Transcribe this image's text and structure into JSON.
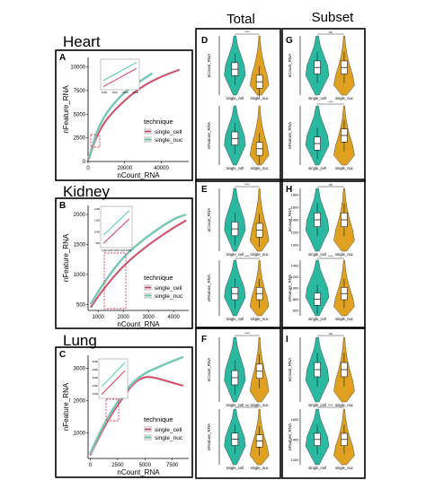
{
  "headers": {
    "total": "Total",
    "subset": "Subset"
  },
  "tissues": {
    "heart": "Heart",
    "kidney": "Kidney",
    "lung": "Lung"
  },
  "panel_letters": {
    "A": "A",
    "B": "B",
    "C": "C",
    "D": "D",
    "E": "E",
    "F": "F",
    "G": "G",
    "H": "H",
    "I": "I"
  },
  "colors": {
    "single_cell": "#d63a5a",
    "single_nuc": "#4ec9b0",
    "violin_cell": "#2ab8a0",
    "violin_nuc": "#e0a020"
  },
  "chart_data": [
    {
      "panel": "A",
      "type": "line",
      "xlabel": "nCount_RNA",
      "ylabel": "nFeature_RNA",
      "xticks": [
        "0",
        "20000",
        "40000"
      ],
      "yticks": [
        "0",
        "2500",
        "5000",
        "7500",
        "10000"
      ],
      "xlim": [
        0,
        55000
      ],
      "ylim": [
        0,
        11000
      ],
      "legend_title": "technique",
      "legend": [
        "single_cell",
        "single_nuc"
      ],
      "inset_xticks": [
        "1000",
        "1500",
        "2000",
        "2500"
      ],
      "series": [
        {
          "name": "single_cell",
          "x": [
            500,
            2000,
            5000,
            10000,
            20000,
            30000,
            40000,
            50000
          ],
          "y": [
            300,
            1200,
            2800,
            4500,
            6500,
            8000,
            9000,
            9700
          ]
        },
        {
          "name": "single_nuc",
          "x": [
            500,
            2000,
            5000,
            10000,
            20000,
            30000,
            35000
          ],
          "y": [
            350,
            1400,
            3300,
            5200,
            7400,
            8700,
            9300
          ]
        }
      ]
    },
    {
      "panel": "B",
      "type": "line",
      "xlabel": "nCount_RNA",
      "ylabel": "nFeature_RNA",
      "xticks": [
        "1000",
        "2000",
        "3000",
        "4000"
      ],
      "yticks": [
        "500",
        "1000",
        "1500",
        "2000"
      ],
      "xlim": [
        600,
        4600
      ],
      "ylim": [
        400,
        2150
      ],
      "legend_title": "technique",
      "legend": [
        "single_cell",
        "single_nuc"
      ],
      "inset_xticks": [
        "1100",
        "1200",
        "1300",
        "1400",
        "1500"
      ],
      "inset_yticks": [
        "1200",
        "1100",
        "1000",
        "900"
      ],
      "series": [
        {
          "name": "single_cell",
          "x": [
            700,
            1200,
            2000,
            3000,
            4000,
            4500
          ],
          "y": [
            450,
            750,
            1150,
            1500,
            1780,
            1900
          ]
        },
        {
          "name": "single_nuc",
          "x": [
            700,
            1200,
            2000,
            3000,
            4000,
            4500
          ],
          "y": [
            500,
            850,
            1300,
            1650,
            1930,
            2000
          ]
        }
      ]
    },
    {
      "panel": "C",
      "type": "line",
      "xlabel": "nCount_RNA",
      "ylabel": "nFeature_RNA",
      "xticks": [
        "0",
        "2500",
        "5000",
        "7500"
      ],
      "yticks": [
        "1000",
        "2000",
        "3000"
      ],
      "xlim": [
        -200,
        9000
      ],
      "ylim": [
        200,
        3400
      ],
      "legend_title": "technique",
      "legend": [
        "single_cell",
        "single_nuc"
      ],
      "inset_yticks": [
        "3000",
        "2500",
        "2000",
        "1500",
        "1000"
      ],
      "series": [
        {
          "name": "single_cell",
          "x": [
            0,
            1000,
            2000,
            3000,
            4000,
            5000,
            6000,
            7000,
            8500
          ],
          "y": [
            300,
            1000,
            1600,
            2100,
            2550,
            2750,
            2700,
            2600,
            2450
          ]
        },
        {
          "name": "single_nuc",
          "x": [
            0,
            1000,
            2000,
            3000,
            4000,
            5000,
            6000,
            7000,
            8500
          ],
          "y": [
            350,
            1100,
            1700,
            2200,
            2600,
            2850,
            3000,
            3150,
            3350
          ]
        }
      ]
    },
    {
      "panel": "D-top",
      "type": "violin",
      "ylabel": "nCount_RNA",
      "categories": [
        "single_cell",
        "single_nuc"
      ],
      "median": [
        3500,
        1800
      ],
      "ylim": [
        0,
        8000
      ],
      "sig": "****"
    },
    {
      "panel": "D-bottom",
      "type": "violin",
      "ylabel": "nFeature_RNA",
      "categories": [
        "single_cell",
        "single_nuc"
      ],
      "median": [
        1800,
        1100
      ],
      "ylim": [
        0,
        4000
      ],
      "sig": ""
    },
    {
      "panel": "E-top",
      "type": "violin",
      "ylabel": "nCount_RNA",
      "categories": [
        "single_cell",
        "single_nuc"
      ],
      "median": [
        1600,
        1500
      ],
      "ylim": [
        0,
        4500
      ],
      "sig": "****"
    },
    {
      "panel": "E-bottom",
      "type": "violin",
      "ylabel": "nFeature_RNA",
      "categories": [
        "single_cell",
        "single_nuc"
      ],
      "median": [
        1000,
        1000
      ],
      "ylim": [
        0,
        2500
      ],
      "sig": "****"
    },
    {
      "panel": "F-top",
      "type": "violin",
      "ylabel": "nCount_RNA",
      "categories": [
        "single_cell",
        "single_nuc"
      ],
      "median": [
        3000,
        3800
      ],
      "ylim": [
        0,
        8000
      ],
      "sig": "****"
    },
    {
      "panel": "F-bottom",
      "type": "violin",
      "ylabel": "nFeature_RNA",
      "categories": [
        "single_cell",
        "single_nuc"
      ],
      "median": [
        1600,
        1500
      ],
      "ylim": [
        0,
        3500
      ],
      "sig": "ns"
    },
    {
      "panel": "G-top",
      "type": "violin",
      "ylabel": "nCount_RNA",
      "categories": [
        "single_cell",
        "single_nuc"
      ],
      "median": [
        1700,
        1700
      ],
      "ylim": [
        1000,
        2500
      ],
      "sig": "ns"
    },
    {
      "panel": "G-bottom",
      "type": "violin",
      "ylabel": "nFeature_RNA",
      "categories": [
        "single_cell",
        "single_nuc"
      ],
      "median": [
        1100,
        1250
      ],
      "ylim": [
        700,
        1800
      ],
      "sig": "****"
    },
    {
      "panel": "H-top",
      "type": "violin",
      "ylabel": "nCount_RNA",
      "categories": [
        "single_cell",
        "single_nuc"
      ],
      "median": [
        1400,
        1400
      ],
      "ylim": [
        900,
        1900
      ],
      "sig": "ns",
      "yticks": [
        "1000",
        "1200",
        "1400",
        "1600",
        "1800"
      ]
    },
    {
      "panel": "H-bottom",
      "type": "violin",
      "ylabel": "nFeature_RNA",
      "categories": [
        "single_cell",
        "single_nuc"
      ],
      "median": [
        800,
        900
      ],
      "ylim": [
        500,
        1500
      ],
      "sig": "****",
      "yticks": [
        "600",
        "800",
        "1000",
        "1200",
        "1400"
      ]
    },
    {
      "panel": "I-top",
      "type": "violin",
      "ylabel": "nCount_RNA",
      "categories": [
        "single_cell",
        "single_nuc"
      ],
      "median": [
        2550,
        2550
      ],
      "ylim": [
        2300,
        2800
      ],
      "sig": "ns"
    },
    {
      "panel": "I-bottom",
      "type": "violin",
      "ylabel": "nFeature_RNA",
      "categories": [
        "single_cell",
        "single_nuc"
      ],
      "median": [
        1400,
        1400
      ],
      "ylim": [
        1150,
        1700
      ],
      "sig": "****",
      "yticks": [
        "1200",
        "1400",
        "1600"
      ]
    }
  ]
}
